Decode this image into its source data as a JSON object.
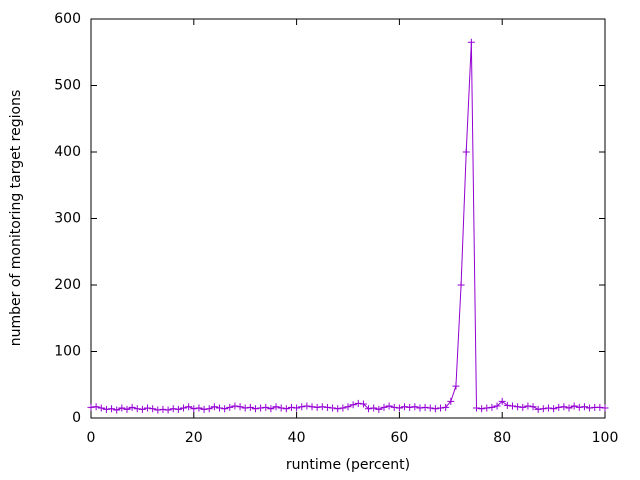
{
  "chart_data": {
    "type": "line",
    "xlabel": "runtime (percent)",
    "ylabel": "number of monitoring target regions",
    "x": [
      0,
      1,
      2,
      3,
      4,
      5,
      6,
      7,
      8,
      9,
      10,
      11,
      12,
      13,
      14,
      15,
      16,
      17,
      18,
      19,
      20,
      21,
      22,
      23,
      24,
      25,
      26,
      27,
      28,
      29,
      30,
      31,
      32,
      33,
      34,
      35,
      36,
      37,
      38,
      39,
      40,
      41,
      42,
      43,
      44,
      45,
      46,
      47,
      48,
      49,
      50,
      51,
      52,
      53,
      54,
      55,
      56,
      57,
      58,
      59,
      60,
      61,
      62,
      63,
      64,
      65,
      66,
      67,
      68,
      69,
      70,
      71,
      72,
      73,
      74,
      75,
      76,
      77,
      78,
      79,
      80,
      81,
      82,
      83,
      84,
      85,
      86,
      87,
      88,
      89,
      90,
      91,
      92,
      93,
      94,
      95,
      96,
      97,
      98,
      99,
      100
    ],
    "series": [
      {
        "color": "#9400d3",
        "values": [
          16,
          17,
          15,
          13,
          14,
          12,
          15,
          13,
          16,
          14,
          13,
          15,
          14,
          12,
          13,
          12,
          14,
          13,
          15,
          17,
          14,
          15,
          13,
          14,
          17,
          15,
          14,
          16,
          18,
          17,
          15,
          16,
          14,
          15,
          16,
          14,
          17,
          15,
          14,
          16,
          15,
          17,
          18,
          17,
          16,
          17,
          16,
          15,
          14,
          15,
          17,
          20,
          22,
          21,
          14,
          15,
          13,
          16,
          18,
          16,
          15,
          17,
          16,
          17,
          15,
          16,
          15,
          14,
          15,
          16,
          25,
          48,
          200,
          400,
          565,
          15,
          14,
          15,
          16,
          18,
          25,
          19,
          18,
          17,
          16,
          18,
          17,
          13,
          14,
          15,
          14,
          16,
          17,
          15,
          18,
          16,
          17,
          15,
          16,
          16,
          15
        ]
      }
    ],
    "xlim": [
      0,
      100
    ],
    "ylim": [
      0,
      600
    ],
    "xticks": [
      0,
      20,
      40,
      60,
      80,
      100
    ],
    "yticks": [
      0,
      100,
      200,
      300,
      400,
      500,
      600
    ],
    "grid": false
  }
}
